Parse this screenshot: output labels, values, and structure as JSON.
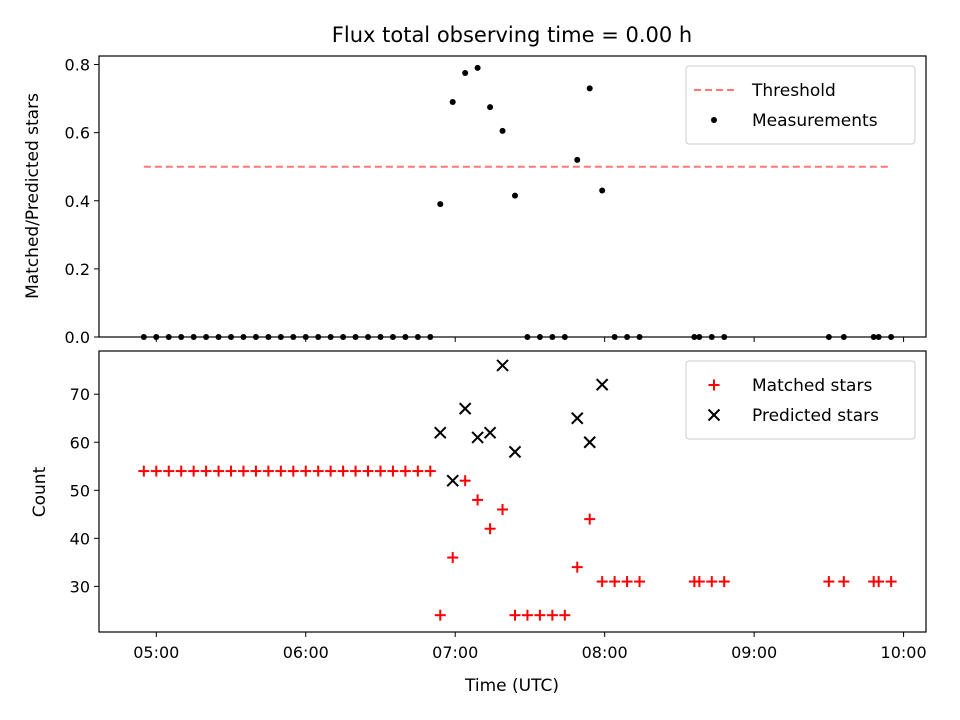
{
  "chart_data": [
    {
      "type": "scatter",
      "title": "Flux total observing time = 0.00 h",
      "ylabel": "Matched/Predicted stars",
      "xlabel": "",
      "xlim": [
        "04:37",
        "10:09"
      ],
      "ylim": [
        0,
        0.825
      ],
      "yticks": [
        "0.0",
        "0.2",
        "0.4",
        "0.6",
        "0.8"
      ],
      "xticks": [
        "05:00",
        "06:00",
        "07:00",
        "08:00",
        "09:00",
        "10:00"
      ],
      "legend_position": "top-right",
      "threshold": {
        "name": "Threshold",
        "value": 0.5,
        "x_range": [
          "04:55",
          "09:55"
        ],
        "color": "#ff7777",
        "style": "dashed"
      },
      "series": [
        {
          "name": "Measurements",
          "color": "#000000",
          "marker": "dot",
          "points": [
            [
              "04:55",
              0
            ],
            [
              "05:00",
              0
            ],
            [
              "05:05",
              0
            ],
            [
              "05:10",
              0
            ],
            [
              "05:15",
              0
            ],
            [
              "05:20",
              0
            ],
            [
              "05:25",
              0
            ],
            [
              "05:30",
              0
            ],
            [
              "05:35",
              0
            ],
            [
              "05:40",
              0
            ],
            [
              "05:45",
              0
            ],
            [
              "05:50",
              0
            ],
            [
              "05:55",
              0
            ],
            [
              "06:00",
              0
            ],
            [
              "06:05",
              0
            ],
            [
              "06:10",
              0
            ],
            [
              "06:15",
              0
            ],
            [
              "06:20",
              0
            ],
            [
              "06:25",
              0
            ],
            [
              "06:30",
              0
            ],
            [
              "06:35",
              0
            ],
            [
              "06:40",
              0
            ],
            [
              "06:45",
              0
            ],
            [
              "06:50",
              0
            ],
            [
              "06:54",
              0.39
            ],
            [
              "06:59",
              0.69
            ],
            [
              "07:04",
              0.775
            ],
            [
              "07:09",
              0.79
            ],
            [
              "07:14",
              0.675
            ],
            [
              "07:19",
              0.605
            ],
            [
              "07:24",
              0.415
            ],
            [
              "07:29",
              0
            ],
            [
              "07:34",
              0
            ],
            [
              "07:39",
              0
            ],
            [
              "07:44",
              0
            ],
            [
              "07:49",
              0.52
            ],
            [
              "07:54",
              0.73
            ],
            [
              "07:59",
              0.43
            ],
            [
              "08:04",
              0
            ],
            [
              "08:09",
              0
            ],
            [
              "08:14",
              0
            ],
            [
              "08:36",
              0
            ],
            [
              "08:38",
              0
            ],
            [
              "08:43",
              0
            ],
            [
              "08:48",
              0
            ],
            [
              "09:30",
              0
            ],
            [
              "09:36",
              0
            ],
            [
              "09:48",
              0
            ],
            [
              "09:50",
              0
            ],
            [
              "09:55",
              0
            ]
          ]
        }
      ]
    },
    {
      "type": "scatter",
      "title": "",
      "ylabel": "Count",
      "xlabel": "Time (UTC)",
      "xlim": [
        "04:37",
        "10:09"
      ],
      "ylim": [
        20.5,
        79
      ],
      "yticks": [
        "30",
        "40",
        "50",
        "60",
        "70"
      ],
      "xticks": [
        "05:00",
        "06:00",
        "07:00",
        "08:00",
        "09:00",
        "10:00"
      ],
      "legend_position": "top-right",
      "series": [
        {
          "name": "Matched stars",
          "color": "#ff0000",
          "marker": "plus",
          "points": [
            [
              "04:55",
              54
            ],
            [
              "05:00",
              54
            ],
            [
              "05:05",
              54
            ],
            [
              "05:10",
              54
            ],
            [
              "05:15",
              54
            ],
            [
              "05:20",
              54
            ],
            [
              "05:25",
              54
            ],
            [
              "05:30",
              54
            ],
            [
              "05:35",
              54
            ],
            [
              "05:40",
              54
            ],
            [
              "05:45",
              54
            ],
            [
              "05:50",
              54
            ],
            [
              "05:55",
              54
            ],
            [
              "06:00",
              54
            ],
            [
              "06:05",
              54
            ],
            [
              "06:10",
              54
            ],
            [
              "06:15",
              54
            ],
            [
              "06:20",
              54
            ],
            [
              "06:25",
              54
            ],
            [
              "06:30",
              54
            ],
            [
              "06:35",
              54
            ],
            [
              "06:40",
              54
            ],
            [
              "06:45",
              54
            ],
            [
              "06:50",
              54
            ],
            [
              "06:54",
              24
            ],
            [
              "06:59",
              36
            ],
            [
              "07:04",
              52
            ],
            [
              "07:09",
              48
            ],
            [
              "07:14",
              42
            ],
            [
              "07:19",
              46
            ],
            [
              "07:24",
              24
            ],
            [
              "07:29",
              24
            ],
            [
              "07:34",
              24
            ],
            [
              "07:39",
              24
            ],
            [
              "07:44",
              24
            ],
            [
              "07:49",
              34
            ],
            [
              "07:54",
              44
            ],
            [
              "07:59",
              31
            ],
            [
              "08:04",
              31
            ],
            [
              "08:09",
              31
            ],
            [
              "08:14",
              31
            ],
            [
              "08:36",
              31
            ],
            [
              "08:38",
              31
            ],
            [
              "08:43",
              31
            ],
            [
              "08:48",
              31
            ],
            [
              "09:30",
              31
            ],
            [
              "09:36",
              31
            ],
            [
              "09:48",
              31
            ],
            [
              "09:50",
              31
            ],
            [
              "09:55",
              31
            ]
          ]
        },
        {
          "name": "Predicted stars",
          "color": "#000000",
          "marker": "x",
          "points": [
            [
              "06:54",
              62
            ],
            [
              "06:59",
              52
            ],
            [
              "07:04",
              67
            ],
            [
              "07:09",
              61
            ],
            [
              "07:14",
              62
            ],
            [
              "07:19",
              76
            ],
            [
              "07:24",
              58
            ],
            [
              "07:49",
              65
            ],
            [
              "07:54",
              60
            ],
            [
              "07:59",
              72
            ]
          ]
        }
      ]
    }
  ]
}
